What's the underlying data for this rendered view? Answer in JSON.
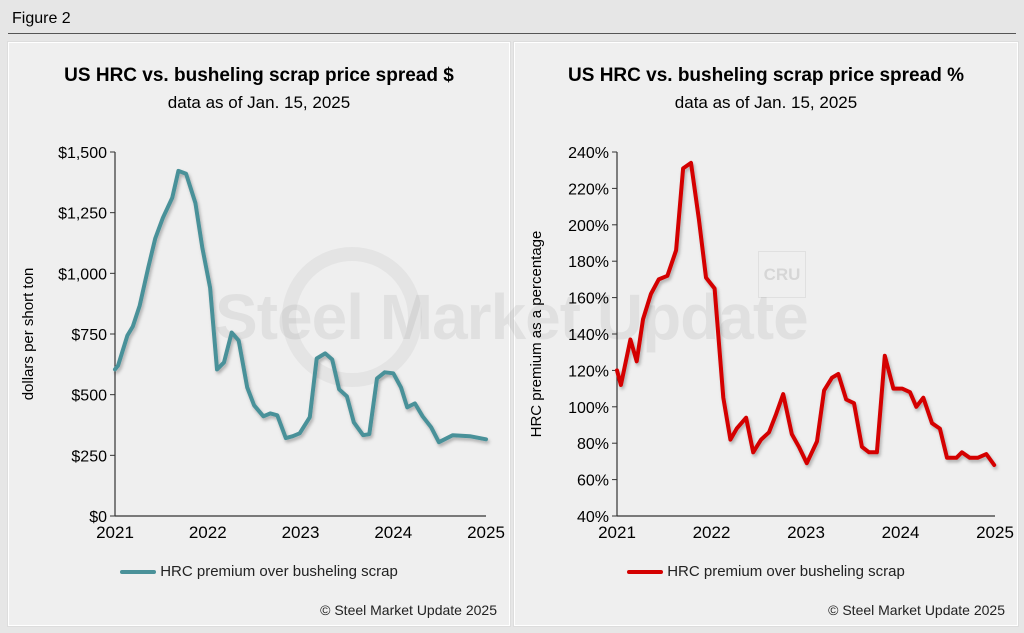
{
  "figure_title": "Figure 2",
  "watermark": "Steel Market Update",
  "watermark_secondary": "CRU",
  "colors": {
    "left_series": "#4a9199",
    "right_series": "#d40000",
    "background": "#efefef"
  },
  "chart_data": [
    {
      "type": "line",
      "title": "US HRC vs. busheling scrap price spread $",
      "subtitle": "data as of Jan. 15, 2025",
      "xlabel": "",
      "ylabel": "dollars per short ton",
      "x_unit": "months since Jan 2021",
      "xlim": [
        0,
        48
      ],
      "ylim": [
        0,
        1500
      ],
      "yticks": [
        0,
        250,
        500,
        750,
        1000,
        1250,
        1500
      ],
      "ytick_labels": [
        "$0",
        "$250",
        "$500",
        "$750",
        "$1,000",
        "$1,250",
        "$1,500"
      ],
      "xticks": [
        0,
        12,
        24,
        36,
        48
      ],
      "xtick_labels": [
        "2021",
        "2022",
        "2023",
        "2024",
        "2025"
      ],
      "grid": false,
      "legend_position": "bottom",
      "copyright": "© Steel Market Update 2025",
      "series": [
        {
          "name": "HRC premium over busheling scrap",
          "points": [
            [
              0,
              604
            ],
            [
              0.4,
              620
            ],
            [
              1.6,
              744
            ],
            [
              2.3,
              781
            ],
            [
              3.2,
              867
            ],
            [
              4.3,
              1023
            ],
            [
              5.2,
              1143
            ],
            [
              6.2,
              1229
            ],
            [
              7.4,
              1311
            ],
            [
              8.2,
              1422
            ],
            [
              9.2,
              1410
            ],
            [
              10.4,
              1290
            ],
            [
              11.3,
              1106
            ],
            [
              12.3,
              941
            ],
            [
              13.2,
              604
            ],
            [
              14.1,
              633
            ],
            [
              15.1,
              756
            ],
            [
              16.0,
              723
            ],
            [
              17.1,
              530
            ],
            [
              18.0,
              456
            ],
            [
              19.2,
              411
            ],
            [
              20.1,
              423
            ],
            [
              21.0,
              415
            ],
            [
              22.1,
              321
            ],
            [
              23.0,
              329
            ],
            [
              23.9,
              341
            ],
            [
              25.2,
              407
            ],
            [
              26.1,
              649
            ],
            [
              27.2,
              670
            ],
            [
              28.1,
              645
            ],
            [
              29.0,
              522
            ],
            [
              30.0,
              493
            ],
            [
              30.9,
              386
            ],
            [
              32.1,
              333
            ],
            [
              32.9,
              337
            ],
            [
              33.9,
              567
            ],
            [
              34.9,
              592
            ],
            [
              36.0,
              588
            ],
            [
              37.0,
              530
            ],
            [
              37.8,
              448
            ],
            [
              38.8,
              464
            ],
            [
              39.8,
              411
            ],
            [
              40.9,
              366
            ],
            [
              41.9,
              304
            ],
            [
              43.7,
              333
            ],
            [
              45.9,
              329
            ],
            [
              48.0,
              316
            ]
          ]
        }
      ]
    },
    {
      "type": "line",
      "title": "US HRC vs. busheling scrap price spread %",
      "subtitle": "data as of Jan. 15, 2025",
      "xlabel": "",
      "ylabel": "HRC premium as a percentage",
      "x_unit": "months since Jan 2021",
      "xlim": [
        0,
        48
      ],
      "ylim": [
        40,
        240
      ],
      "yticks": [
        40,
        60,
        80,
        100,
        120,
        140,
        160,
        180,
        200,
        220,
        240
      ],
      "ytick_labels": [
        "40%",
        "60%",
        "80%",
        "100%",
        "120%",
        "140%",
        "160%",
        "180%",
        "200%",
        "220%",
        "240%"
      ],
      "xticks": [
        0,
        12,
        24,
        36,
        48
      ],
      "xtick_labels": [
        "2021",
        "2022",
        "2023",
        "2024",
        "2025"
      ],
      "grid": false,
      "legend_position": "bottom",
      "copyright": "© Steel Market Update 2025",
      "series": [
        {
          "name": "HRC premium over busheling scrap",
          "points": [
            [
              0,
              120
            ],
            [
              0.5,
              112
            ],
            [
              1.7,
              137
            ],
            [
              2.5,
              125
            ],
            [
              3.3,
              148
            ],
            [
              4.3,
              162
            ],
            [
              5.3,
              170
            ],
            [
              6.4,
              172
            ],
            [
              7.5,
              186
            ],
            [
              8.4,
              231
            ],
            [
              9.4,
              234
            ],
            [
              10.4,
              203
            ],
            [
              11.3,
              171
            ],
            [
              12.4,
              165
            ],
            [
              13.5,
              105
            ],
            [
              14.4,
              82
            ],
            [
              15.2,
              88
            ],
            [
              16.4,
              94
            ],
            [
              17.3,
              75
            ],
            [
              18.3,
              82
            ],
            [
              19.3,
              86
            ],
            [
              20.2,
              96
            ],
            [
              21.1,
              107
            ],
            [
              22.2,
              85
            ],
            [
              23.1,
              78
            ],
            [
              24.1,
              69
            ],
            [
              25.4,
              81
            ],
            [
              26.3,
              109
            ],
            [
              27.3,
              116
            ],
            [
              28.1,
              118
            ],
            [
              29.1,
              104
            ],
            [
              30.1,
              102
            ],
            [
              31.1,
              78
            ],
            [
              32.0,
              75
            ],
            [
              33.0,
              75
            ],
            [
              34.0,
              128
            ],
            [
              35.1,
              110
            ],
            [
              36.2,
              110
            ],
            [
              37.2,
              108
            ],
            [
              38.0,
              100
            ],
            [
              38.9,
              105
            ],
            [
              40.0,
              91
            ],
            [
              41.0,
              88
            ],
            [
              41.9,
              72
            ],
            [
              43.1,
              72
            ],
            [
              43.8,
              75
            ],
            [
              44.8,
              72
            ],
            [
              45.8,
              72
            ],
            [
              46.9,
              74
            ],
            [
              47.9,
              68
            ]
          ]
        }
      ]
    }
  ]
}
